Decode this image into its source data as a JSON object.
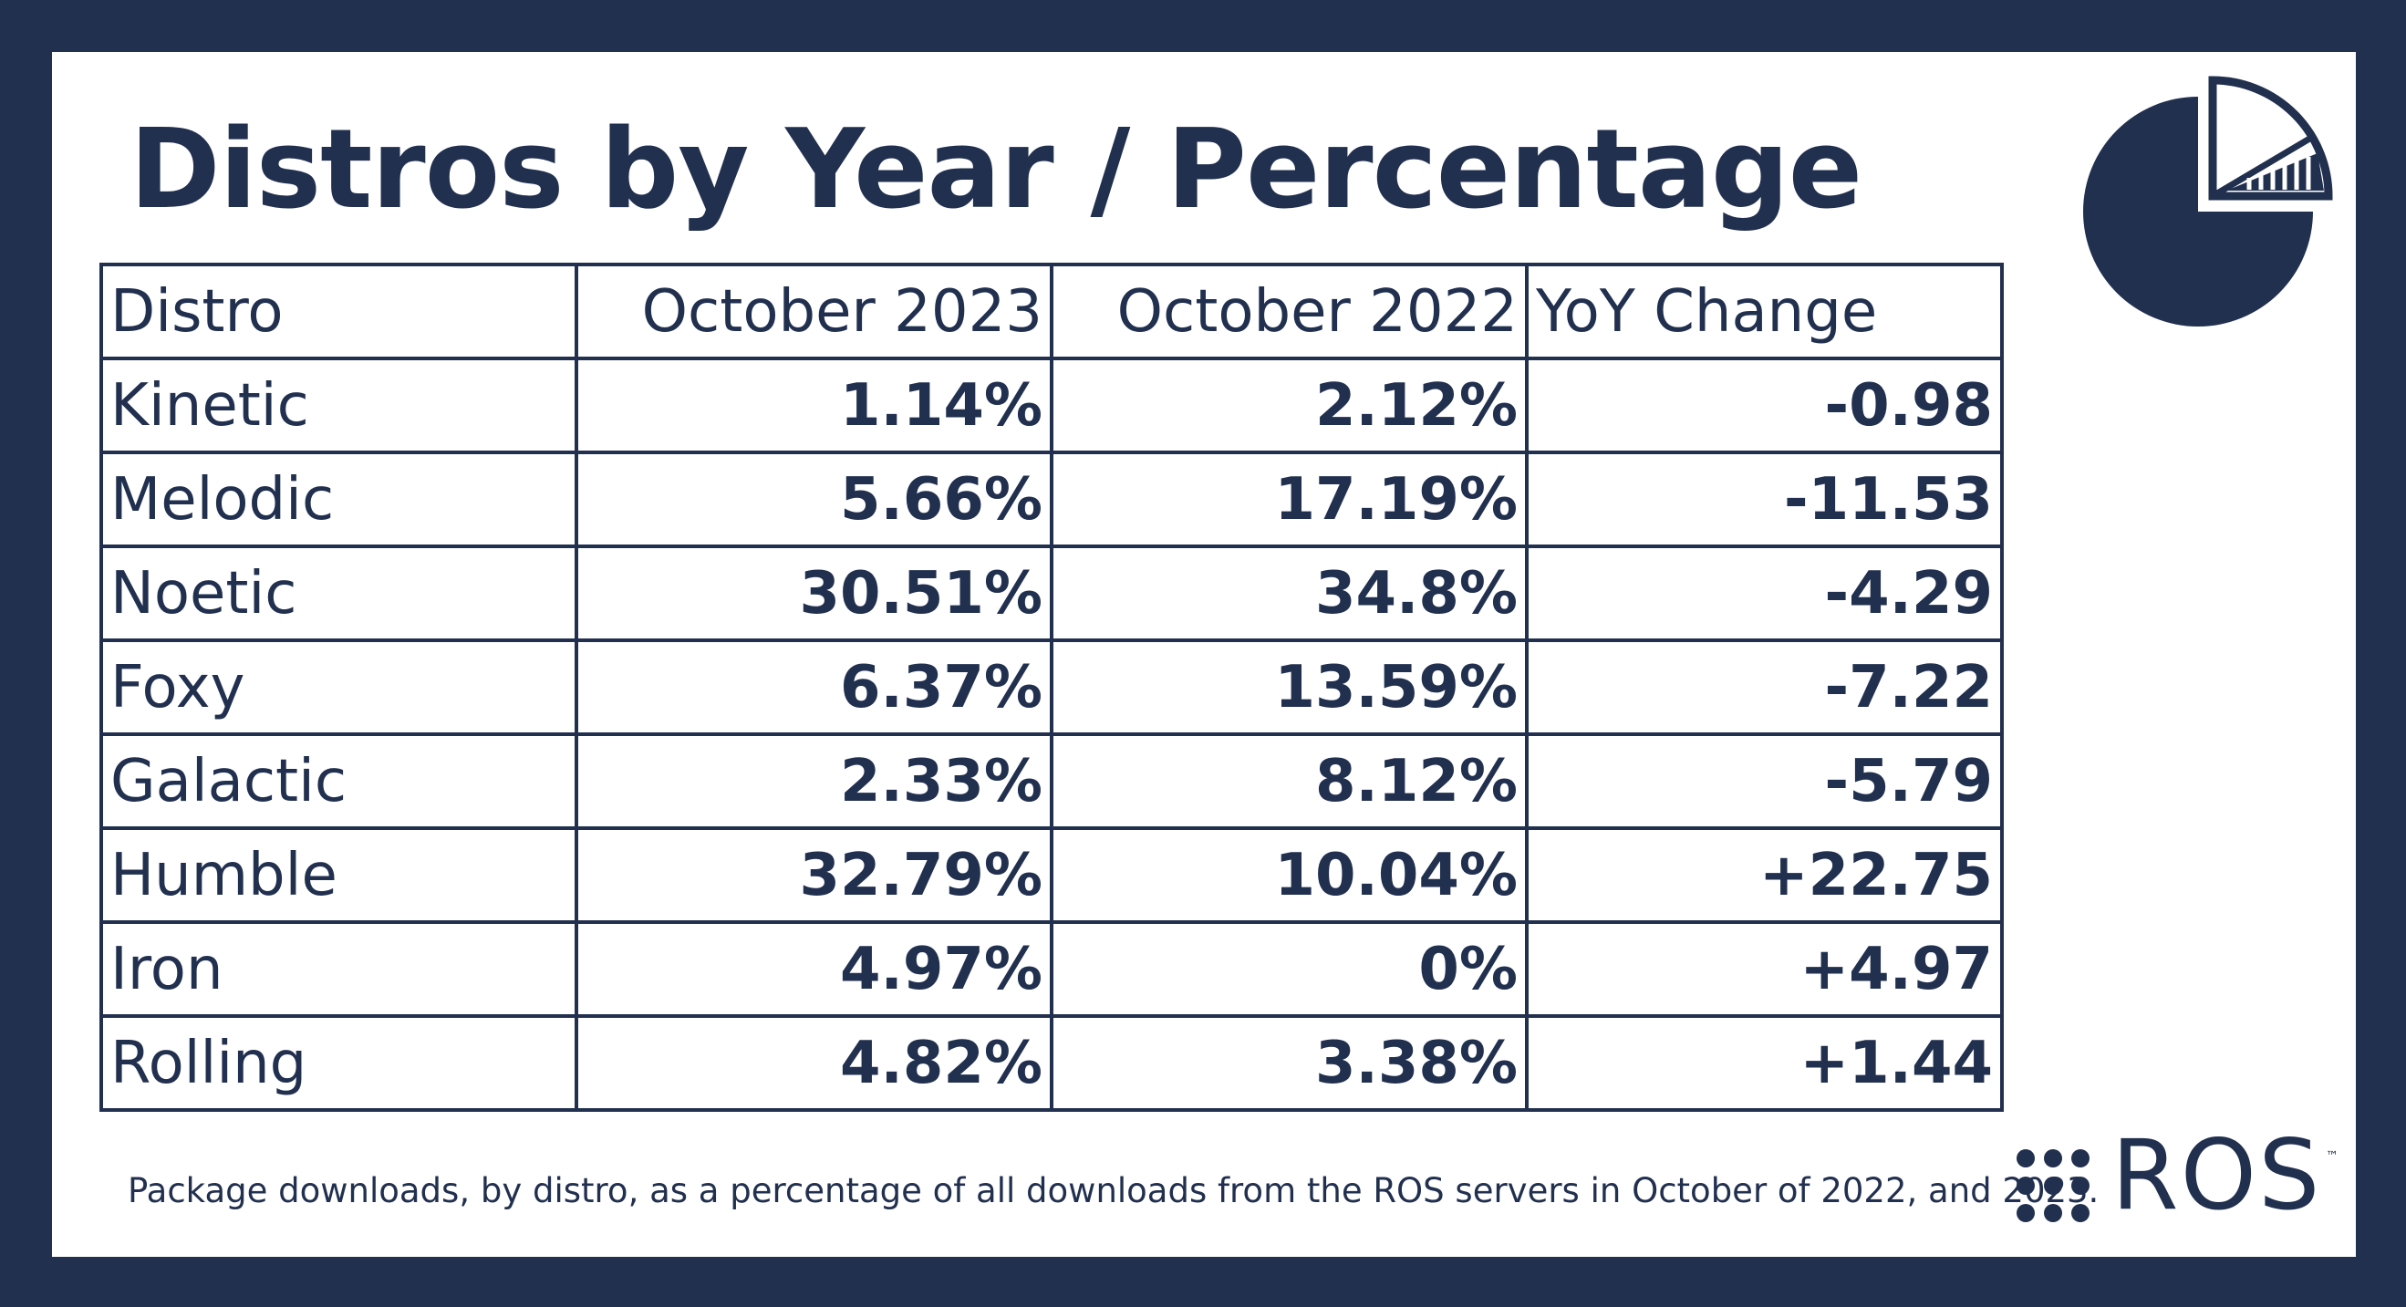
{
  "title": "Distros by Year / Percentage",
  "table": {
    "headers": [
      "Distro",
      "October 2023",
      "October 2022",
      "YoY Change"
    ],
    "rows": [
      [
        "Kinetic",
        "1.14%",
        "2.12%",
        "-0.98"
      ],
      [
        "Melodic",
        "5.66%",
        "17.19%",
        "-11.53"
      ],
      [
        "Noetic",
        "30.51%",
        "34.8%",
        "-4.29"
      ],
      [
        "Foxy",
        "6.37%",
        "13.59%",
        "-7.22"
      ],
      [
        "Galactic",
        "2.33%",
        "8.12%",
        "-5.79"
      ],
      [
        "Humble",
        "32.79%",
        "10.04%",
        "+22.75"
      ],
      [
        "Iron",
        "4.97%",
        "0%",
        "+4.97"
      ],
      [
        "Rolling",
        "4.82%",
        "3.38%",
        "+1.44"
      ]
    ]
  },
  "caption": "Package downloads, by distro, as a percentage of all downloads from the ROS servers in October of 2022, and 2023.",
  "logo": {
    "text": "ROS",
    "tm": "™"
  },
  "icons": {
    "header": "pie-chart-icon",
    "brand": "ros-dots-icon"
  },
  "colors": {
    "navy": "#22304f",
    "background": "#ffffff"
  }
}
